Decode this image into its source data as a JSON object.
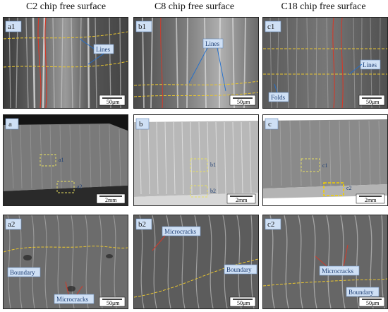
{
  "columns": {
    "c2": "C2 chip free surface",
    "c8": "C8 chip free surface",
    "c18": "C18 chip free surface"
  },
  "panels": {
    "a1": {
      "label": "a1",
      "callout": "Lines",
      "scale": "50μm"
    },
    "b1": {
      "label": "b1",
      "callout": "Lines",
      "scale": "50μm"
    },
    "c1": {
      "label": "c1",
      "callout1": "Lines",
      "callout2": "Folds",
      "scale": "50μm"
    },
    "a": {
      "label": "a",
      "box1": "a1",
      "box2": "a2",
      "scale": "2mm"
    },
    "b": {
      "label": "b",
      "box1": "b1",
      "box2": "b2",
      "scale": "2mm"
    },
    "c": {
      "label": "c",
      "box1": "c1",
      "box2": "c2",
      "scale": "2mm"
    },
    "a2": {
      "label": "a2",
      "callout1": "Boundary",
      "callout2": "Microcracks",
      "scale": "50μm"
    },
    "b2": {
      "label": "b2",
      "callout1": "Microcracks",
      "callout2": "Boundary",
      "scale": "50μm"
    },
    "c2": {
      "label": "c2",
      "callout1": "Microcracks",
      "callout2": "Boundary",
      "scale": "50μm"
    }
  },
  "colors": {
    "yellow_dash": "#e8c530",
    "red_line": "#d23a2a",
    "callout_fill": "#cfe0f5",
    "callout_text": "#1f3f73"
  }
}
